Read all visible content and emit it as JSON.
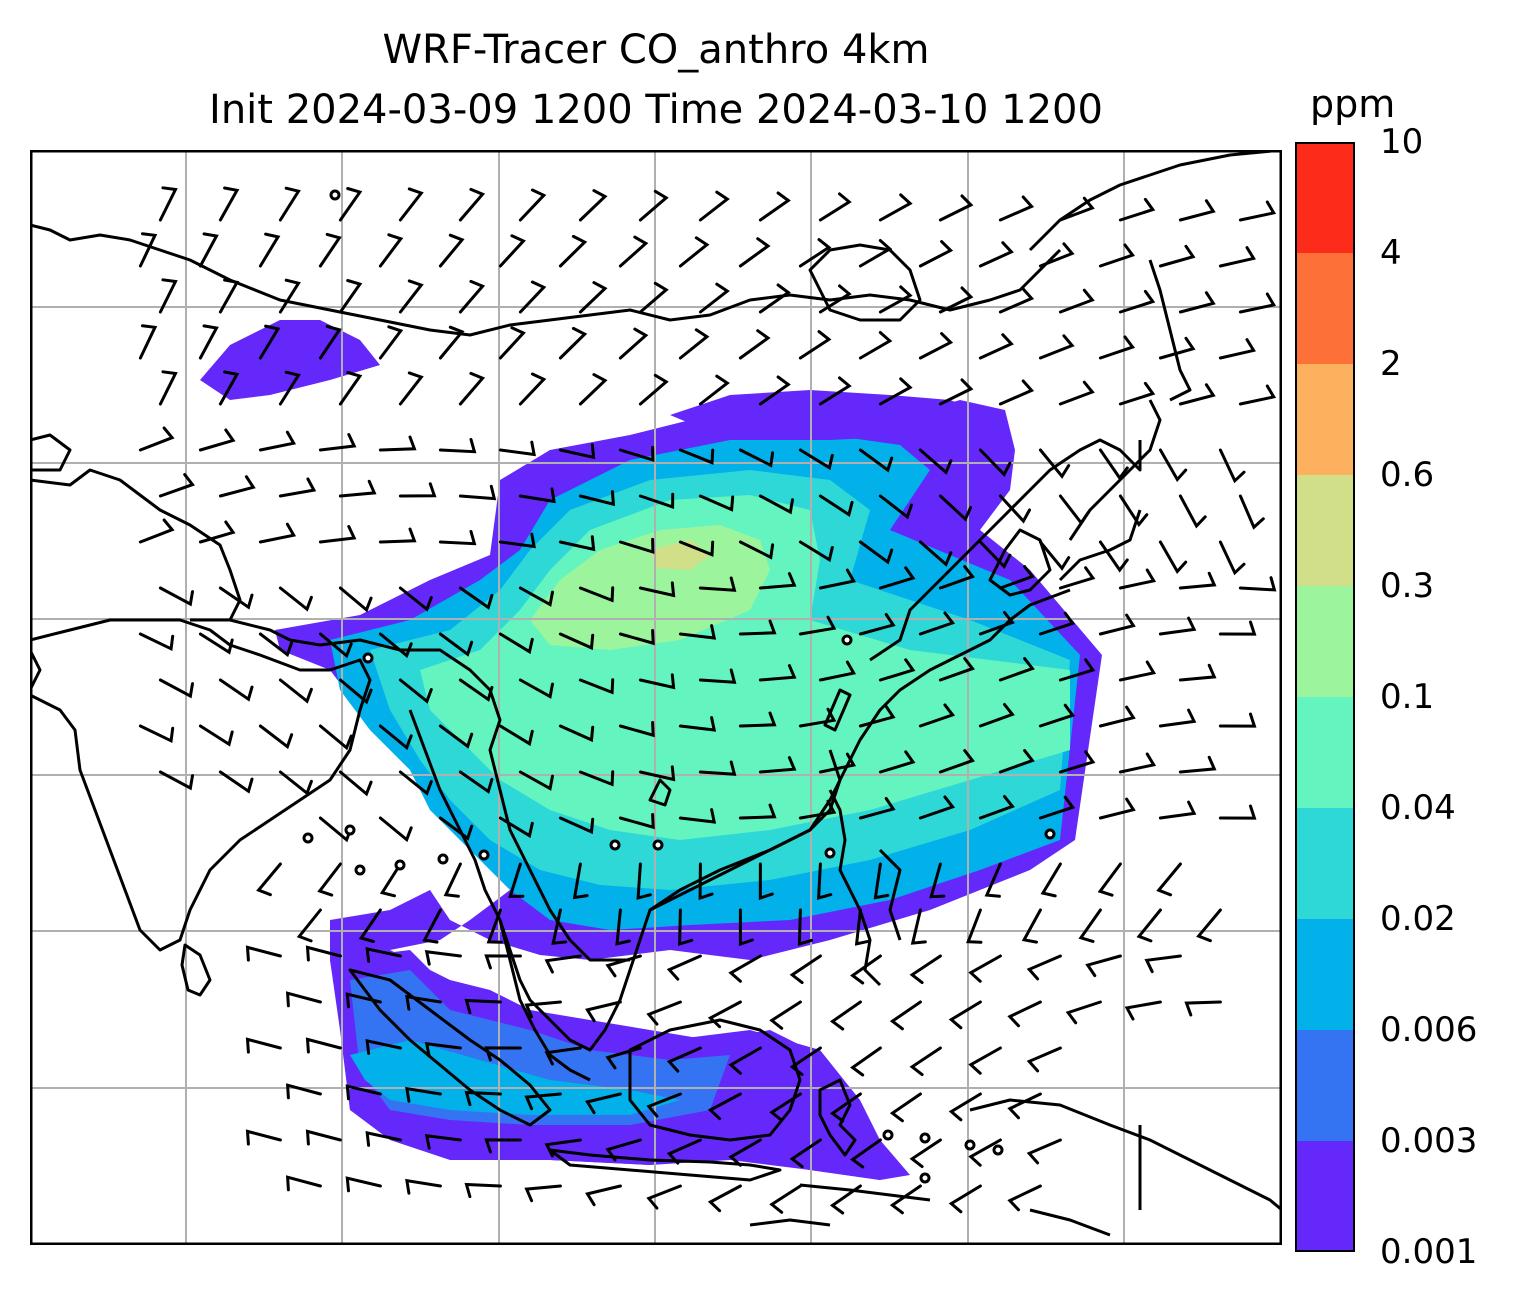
{
  "title": {
    "line1": "WRF-Tracer CO_anthro 4km",
    "line2": "Init 2024-03-09 1200 Time 2024-03-10 1200"
  },
  "colorbar": {
    "unit": "ppm",
    "levels": [
      "0.001",
      "0.003",
      "0.006",
      "0.02",
      "0.04",
      "0.1",
      "0.3",
      "0.6",
      "2",
      "4",
      "10"
    ],
    "colors": [
      "#6428fa",
      "#3474f2",
      "#02b0ea",
      "#2ed8d6",
      "#64f4c0",
      "#9cf59c",
      "#d1e088",
      "#fdb05e",
      "#fd7038",
      "#fd2b1a"
    ]
  },
  "map": {
    "field": "CO_anthro",
    "grid_lines": "on",
    "coastline_color": "#000000",
    "barb_color": "#000000"
  }
}
